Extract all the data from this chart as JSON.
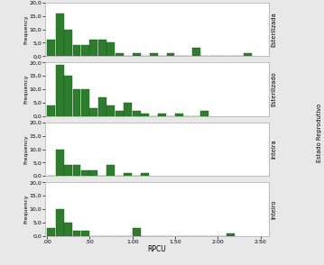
{
  "panels": [
    {
      "label": "Esterilizada",
      "bar_values": [
        6,
        16,
        10,
        4,
        4,
        6,
        6,
        5,
        1,
        0,
        1,
        0,
        1,
        0,
        1,
        0,
        0,
        3,
        0,
        0,
        0,
        0,
        0,
        1
      ],
      "ylim": [
        0,
        20
      ],
      "yticks": [
        0,
        5,
        10,
        15,
        20
      ]
    },
    {
      "label": "Esterilizado",
      "bar_values": [
        4,
        19,
        15,
        10,
        10,
        3,
        7,
        4,
        2,
        5,
        2,
        1,
        0,
        1,
        0,
        1,
        0,
        0,
        2
      ],
      "ylim": [
        0,
        20
      ],
      "yticks": [
        0,
        5,
        10,
        15,
        20
      ]
    },
    {
      "label": "Inteira",
      "bar_values": [
        0,
        10,
        4,
        4,
        2,
        2,
        0,
        4,
        0,
        1,
        0,
        1
      ],
      "ylim": [
        0,
        20
      ],
      "yticks": [
        0,
        5,
        10,
        15,
        20
      ]
    },
    {
      "label": "Inteiro",
      "bar_values": [
        3,
        10,
        5,
        2,
        2,
        0,
        0,
        0,
        0,
        0,
        3,
        0,
        0,
        0,
        0,
        0,
        0,
        0,
        0,
        0,
        0,
        1
      ],
      "ylim": [
        0,
        20
      ],
      "yticks": [
        0,
        5,
        10,
        15,
        20
      ]
    }
  ],
  "bin_width": 0.1,
  "x_start": 0.0,
  "xlim": [
    -0.02,
    2.6
  ],
  "xticks": [
    0.0,
    0.5,
    1.0,
    1.5,
    2.0,
    2.5
  ],
  "xticklabels": [
    ".00",
    ".50",
    "1.00",
    "1.50",
    "2.00",
    "2.50"
  ],
  "xlabel": "RPCU",
  "ylabel": "Frequency",
  "bar_color": "#2e7d2e",
  "bar_edge_color": "#1a5c1a",
  "right_label": "Estado Reprodutivo",
  "fig_bg": "#e8e8e8",
  "panel_bg": "white"
}
